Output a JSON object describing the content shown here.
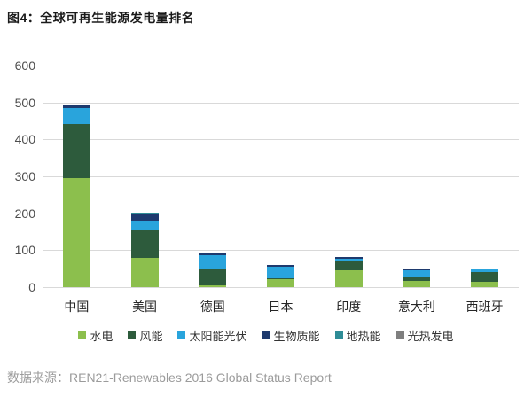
{
  "title": "图4：全球可再生能源发电量排名",
  "source": "数据来源：REN21-Renewables 2016 Global Status Report",
  "colors": {
    "hydro": "#8CBF4D",
    "wind": "#2D5B3C",
    "solar_pv": "#29A4DC",
    "biomass": "#1E3A6E",
    "geothermal": "#2E8C96",
    "csp": "#7F7F7F",
    "gridline": "#d9d9d9",
    "title_text": "#1a1a1a",
    "axis_text": "#4d4d4d",
    "source_text": "#9b9b9b"
  },
  "chart_data": {
    "type": "bar",
    "stacked": true,
    "title": "图4：全球可再生能源发电量排名",
    "xlabel": "",
    "ylabel": "",
    "categories": [
      "中国",
      "美国",
      "德国",
      "日本",
      "印度",
      "意大利",
      "西班牙"
    ],
    "series": [
      {
        "name": "水电",
        "color": "#8CBF4D",
        "values": [
          296,
          80,
          5,
          21,
          45,
          18,
          15
        ]
      },
      {
        "name": "风能",
        "color": "#2D5B3C",
        "values": [
          145,
          74,
          42,
          2,
          25,
          9,
          27
        ]
      },
      {
        "name": "太阳能光伏",
        "color": "#29A4DC",
        "values": [
          43,
          26,
          40,
          33,
          6,
          19,
          5
        ]
      },
      {
        "name": "生物质能",
        "color": "#1E3A6E",
        "values": [
          10,
          17,
          7,
          4,
          6,
          4,
          1
        ]
      },
      {
        "name": "地热能",
        "color": "#2E8C96",
        "values": [
          0,
          3.6,
          0,
          0,
          0,
          1,
          0
        ]
      },
      {
        "name": "光热发电",
        "color": "#7F7F7F",
        "values": [
          0,
          0,
          0,
          0,
          0,
          0,
          2
        ]
      }
    ],
    "ylim": [
      0,
      600
    ],
    "yticks": [
      0,
      100,
      200,
      300,
      400,
      500,
      600
    ],
    "grid": true,
    "legend_position": "bottom"
  }
}
